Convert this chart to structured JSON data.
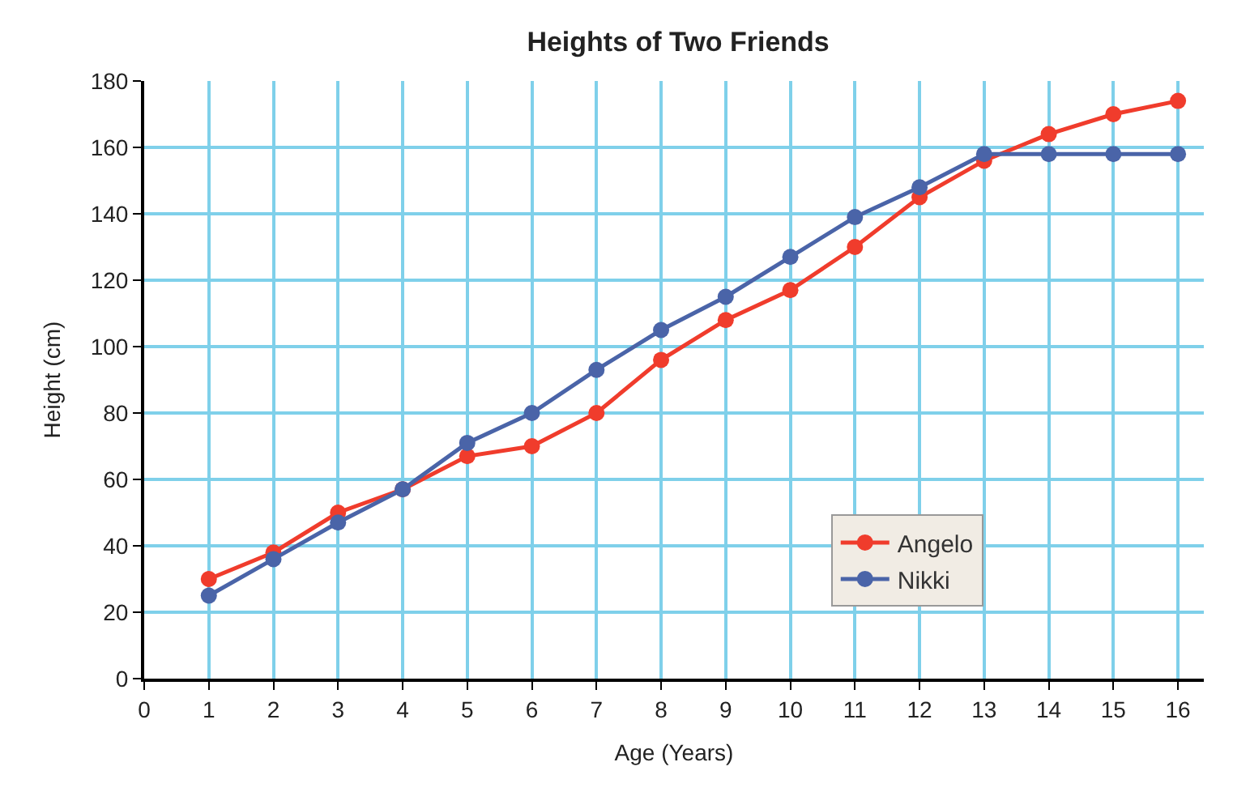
{
  "chart_data": {
    "type": "line",
    "title": "Heights of Two Friends",
    "xlabel": "Age (Years)",
    "ylabel": "Height (cm)",
    "x": [
      1,
      2,
      3,
      4,
      5,
      6,
      7,
      8,
      9,
      10,
      11,
      12,
      13,
      14,
      15,
      16
    ],
    "series": [
      {
        "name": "Angelo",
        "color": "#f03c2c",
        "values": [
          30,
          38,
          50,
          57,
          67,
          70,
          80,
          96,
          108,
          117,
          130,
          145,
          156,
          164,
          170,
          174
        ]
      },
      {
        "name": "Nikki",
        "color": "#4a64a8",
        "values": [
          25,
          36,
          47,
          57,
          71,
          80,
          93,
          105,
          115,
          127,
          139,
          148,
          158,
          158,
          158,
          158
        ]
      }
    ],
    "xlim": [
      0,
      16.4
    ],
    "xticks": [
      0,
      1,
      2,
      3,
      4,
      5,
      6,
      7,
      8,
      9,
      10,
      11,
      12,
      13,
      14,
      15,
      16
    ],
    "ylim": [
      0,
      180
    ],
    "yticks": [
      0,
      20,
      40,
      60,
      80,
      100,
      120,
      140,
      160,
      180
    ],
    "grid": true,
    "legend": "bottom right",
    "marker": "circle",
    "line_style": "solid"
  }
}
